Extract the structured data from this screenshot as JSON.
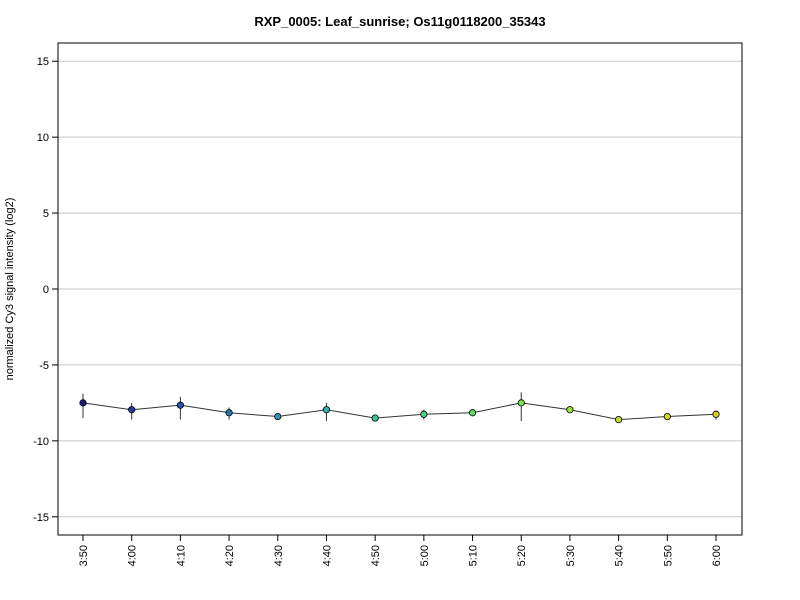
{
  "chart_data": {
    "type": "line",
    "title": "RXP_0005: Leaf_sunrise; Os11g0118200_35343",
    "xlabel": "",
    "ylabel": "normalized Cy3 signal intensity (log2)",
    "ylim": [
      -16.2,
      16.2
    ],
    "yticks": [
      -15,
      -10,
      -5,
      0,
      5,
      10,
      15
    ],
    "grid": true,
    "categories": [
      "3:50",
      "4:00",
      "4:10",
      "4:20",
      "4:30",
      "4:40",
      "4:50",
      "5:00",
      "5:10",
      "5:20",
      "5:30",
      "5:40",
      "5:50",
      "6:00"
    ],
    "values": [
      -7.5,
      -7.95,
      -7.65,
      -8.15,
      -8.4,
      -7.95,
      -8.5,
      -8.25,
      -8.15,
      -7.5,
      -7.95,
      -8.6,
      -8.4,
      -8.25
    ],
    "error_low": [
      -8.5,
      -8.6,
      -8.6,
      -8.6,
      -8.5,
      -8.7,
      -8.6,
      -8.6,
      -8.3,
      -8.7,
      -8.1,
      -8.7,
      -8.6,
      -8.6
    ],
    "error_high": [
      -6.9,
      -7.5,
      -7.1,
      -7.8,
      -8.25,
      -7.5,
      -8.35,
      -7.95,
      -8.0,
      -6.8,
      -7.8,
      -8.5,
      -8.2,
      -8.0
    ],
    "point_colors": [
      "#1a1a7a",
      "#1f3d9a",
      "#24569f",
      "#2878a8",
      "#2e96b0",
      "#34b0a8",
      "#3bc49a",
      "#4ad27f",
      "#5fdc60",
      "#7ae24a",
      "#9ae43a",
      "#b8e030",
      "#cfd52c",
      "#d9c92a"
    ],
    "line_color": "#333333",
    "grid_color": "#c8c8c8"
  }
}
